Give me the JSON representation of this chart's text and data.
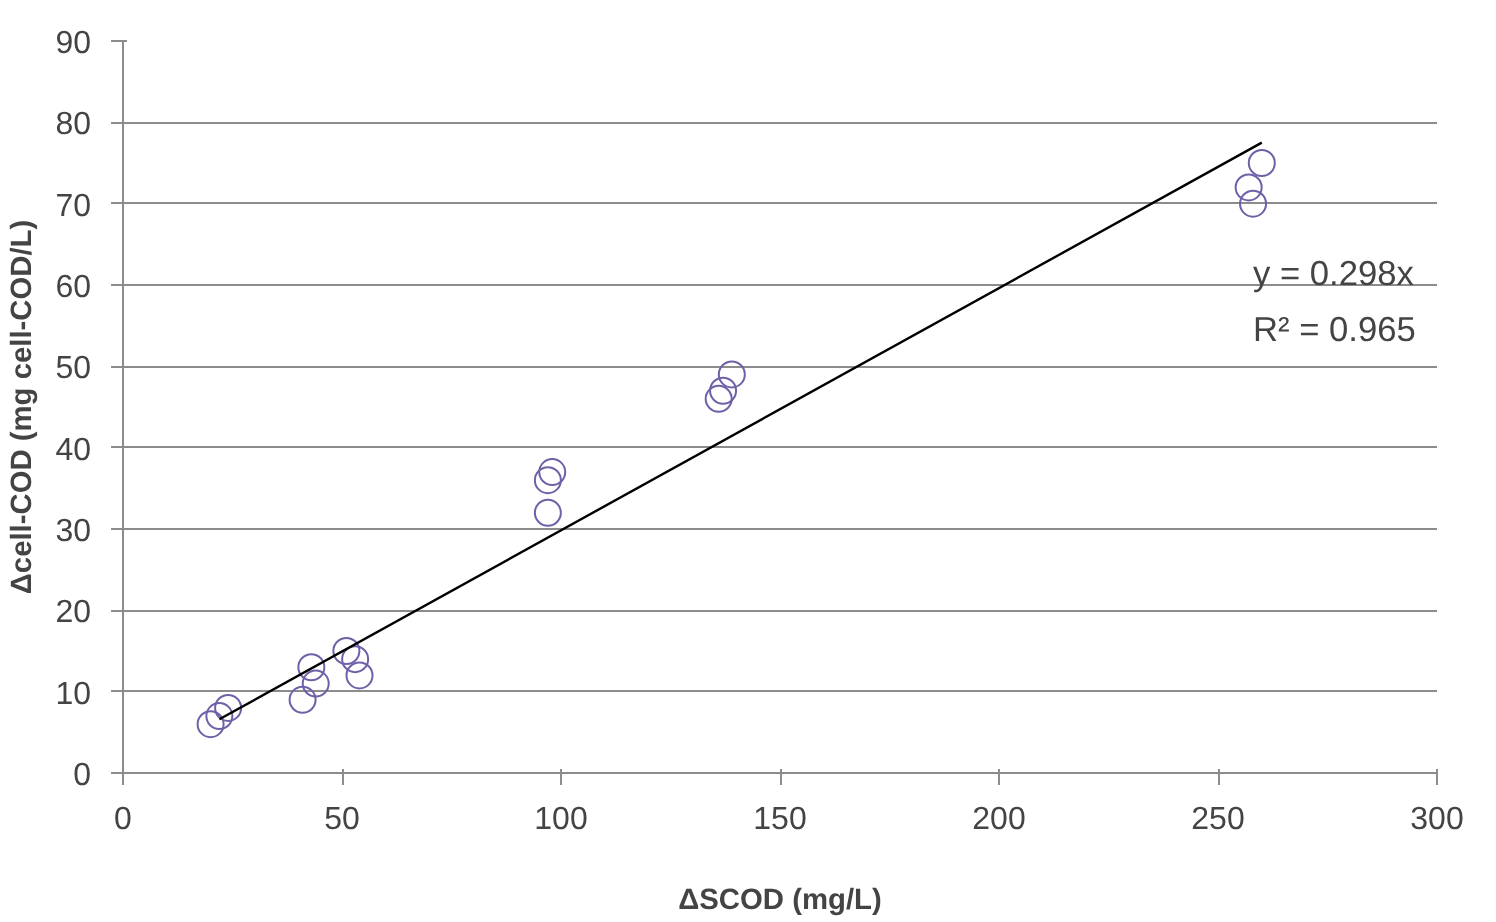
{
  "chart_data": {
    "type": "scatter",
    "xlabel": "ΔSCOD (mg/L)",
    "ylabel": "Δcell-COD (mg cell-COD/L)",
    "xlim": [
      0,
      300
    ],
    "xticks": [
      0,
      50,
      100,
      150,
      200,
      250,
      300
    ],
    "ylim": [
      0,
      90
    ],
    "yticks": [
      0,
      10,
      20,
      30,
      40,
      50,
      60,
      70,
      80,
      90
    ],
    "grid": "y",
    "marker": "circle",
    "annotations": [
      "y = 0.298x",
      "R² = 0.965"
    ],
    "series": [
      {
        "color": "#7060a8",
        "x": [
          20,
          22,
          24,
          41,
          43,
          44,
          51,
          53,
          54,
          97,
          97,
          98,
          136,
          137,
          139,
          257,
          258,
          260
        ],
        "values": [
          6,
          7,
          8,
          9,
          13,
          11,
          15,
          14,
          12,
          32,
          36,
          37,
          46,
          47,
          49,
          72,
          70,
          75
        ]
      },
      {
        "type": "line",
        "marker": "none",
        "color": "#000000",
        "x": [
          22,
          260
        ],
        "values": [
          6.6,
          77.5
        ]
      }
    ]
  }
}
